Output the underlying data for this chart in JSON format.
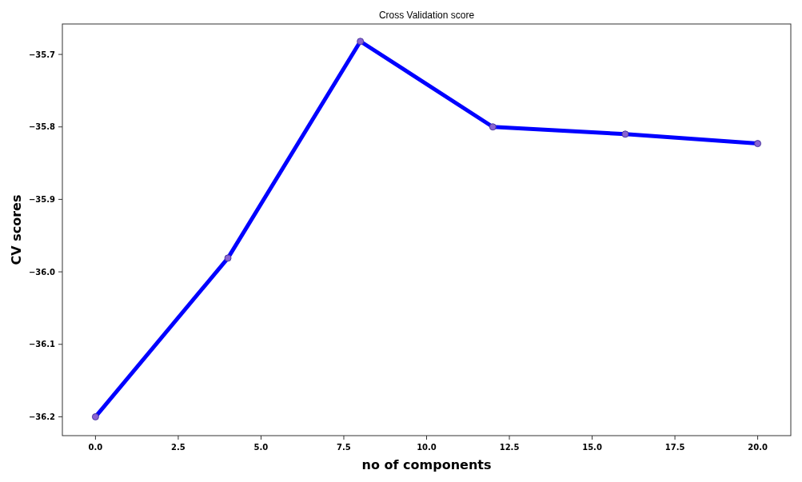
{
  "chart_data": {
    "type": "line",
    "title": "Cross Validation score",
    "xlabel": "no of components",
    "ylabel": "CV scores",
    "x": [
      0,
      4,
      8,
      12,
      16,
      20
    ],
    "series": [
      {
        "color": "#0000ff",
        "values": [
          -36.2,
          -35.981,
          -35.682,
          -35.8,
          -35.81,
          -35.823
        ]
      }
    ],
    "xlim": [
      -1,
      21
    ],
    "xticks": [
      {
        "value": 0,
        "label": "0.0"
      },
      {
        "value": 2.5,
        "label": "2.5"
      },
      {
        "value": 5,
        "label": "5.0"
      },
      {
        "value": 7.5,
        "label": "7.5"
      },
      {
        "value": 10,
        "label": "10.0"
      },
      {
        "value": 12.5,
        "label": "12.5"
      },
      {
        "value": 15,
        "label": "15.0"
      },
      {
        "value": 17.5,
        "label": "17.5"
      },
      {
        "value": 20,
        "label": "20.0"
      }
    ],
    "ylim": [
      -36.226,
      -35.658
    ],
    "yticks": [
      {
        "value": -36.2,
        "label": "−36.2"
      },
      {
        "value": -36.1,
        "label": "−36.1"
      },
      {
        "value": -36.0,
        "label": "−36.0"
      },
      {
        "value": -35.9,
        "label": "−35.9"
      },
      {
        "value": -35.8,
        "label": "−35.8"
      },
      {
        "value": -35.7,
        "label": "−35.7"
      }
    ],
    "marker": "circle",
    "line_style": "solid",
    "grid": false
  }
}
